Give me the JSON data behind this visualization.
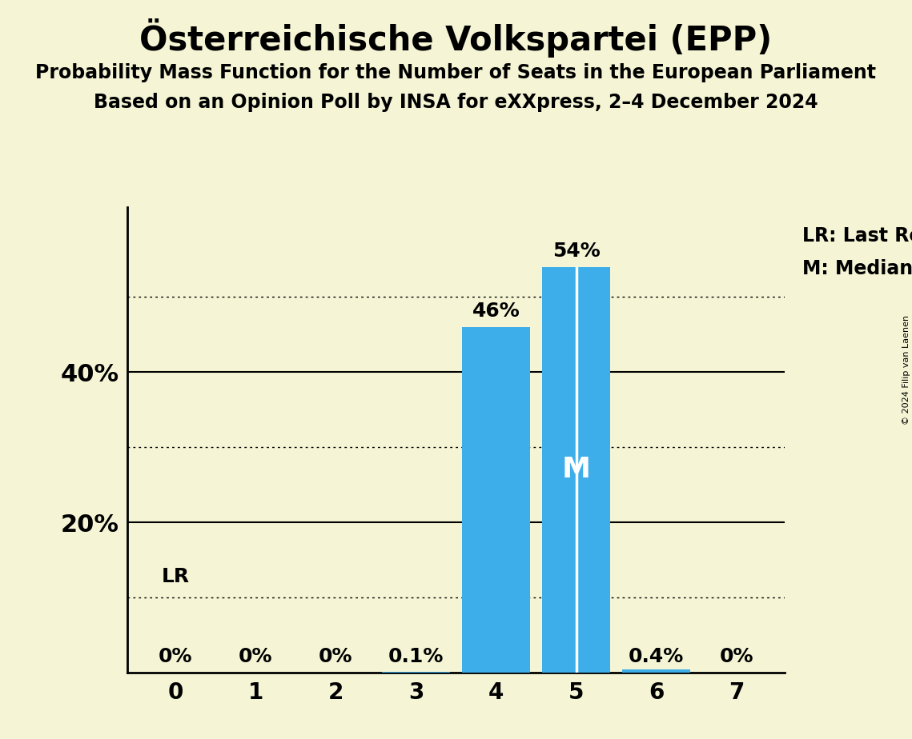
{
  "title": "Österreichische Volkspartei (EPP)",
  "subtitle1": "Probability Mass Function for the Number of Seats in the European Parliament",
  "subtitle2": "Based on an Opinion Poll by INSA for eXXpress, 2–4 December 2024",
  "copyright": "© 2024 Filip van Laenen",
  "categories": [
    0,
    1,
    2,
    3,
    4,
    5,
    6,
    7
  ],
  "values": [
    0.0,
    0.0,
    0.0,
    0.001,
    0.46,
    0.54,
    0.004,
    0.0
  ],
  "labels": [
    "0%",
    "0%",
    "0%",
    "0.1%",
    "46%",
    "54%",
    "0.4%",
    "0%"
  ],
  "bar_color": "#3daee9",
  "median_bar": 5,
  "last_result_bar": 0,
  "background_color": "#f5f5d5",
  "median_line_color": "#ffffff",
  "yticks": [
    0.2,
    0.4
  ],
  "ytick_labels": [
    "20%",
    "40%"
  ],
  "solid_gridlines": [
    0.2,
    0.4
  ],
  "dotted_gridlines": [
    0.1,
    0.3,
    0.5
  ],
  "ylim": [
    0,
    0.62
  ],
  "legend_lr": "LR: Last Result",
  "legend_m": "M: Median",
  "lr_label": "LR",
  "title_fontsize": 30,
  "subtitle_fontsize": 17,
  "label_fontsize": 18,
  "tick_fontsize": 20,
  "ytick_fontsize": 22,
  "legend_fontsize": 17,
  "m_label_fontsize": 26
}
